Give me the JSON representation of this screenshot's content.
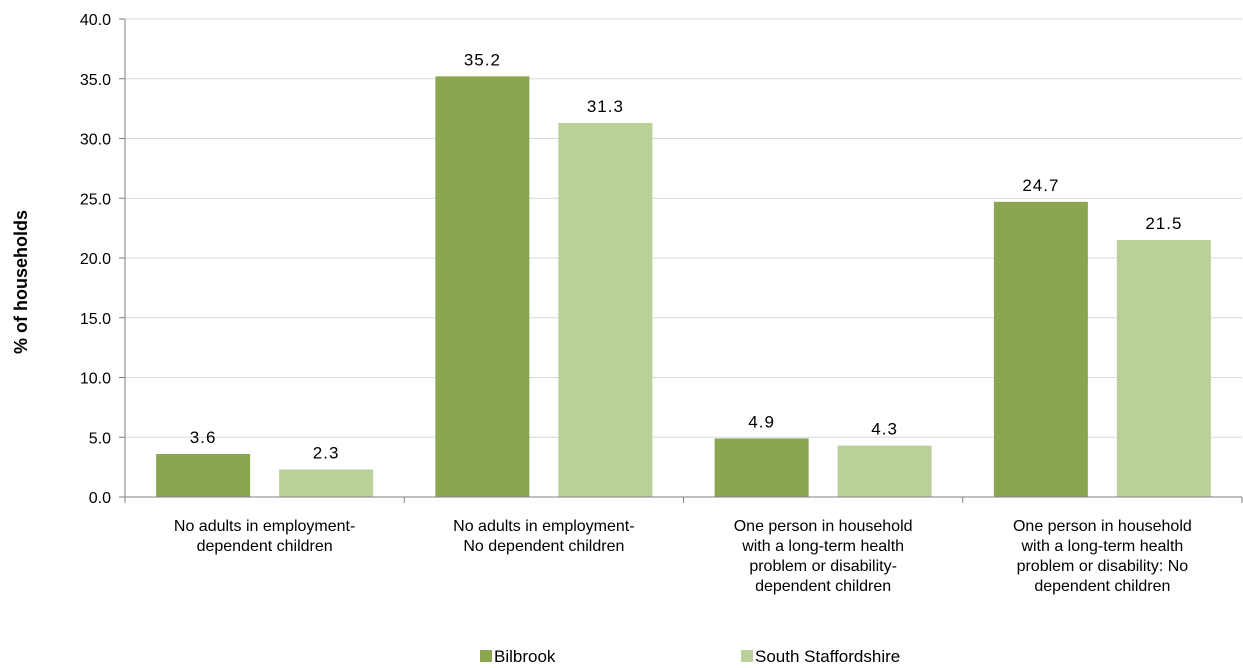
{
  "chart_data": {
    "type": "bar",
    "title": "",
    "xlabel": "",
    "ylabel": "% of households",
    "ylim": [
      0,
      40
    ],
    "y_ticks": [
      "0.0",
      "5.0",
      "10.0",
      "15.0",
      "20.0",
      "25.0",
      "30.0",
      "35.0",
      "40.0"
    ],
    "grid": true,
    "legend_position": "bottom",
    "categories": [
      [
        "No adults in employment-",
        "dependent children"
      ],
      [
        "No adults in employment-",
        "No dependent children"
      ],
      [
        "One person in household",
        "with a long-term health",
        "problem or disability-",
        "dependent children"
      ],
      [
        "One person in household",
        "with a long-term health",
        "problem or disability: No",
        "dependent children"
      ]
    ],
    "series": [
      {
        "name": "Bilbrook",
        "color": "#8aa74f",
        "values": [
          3.6,
          35.2,
          4.9,
          24.7
        ]
      },
      {
        "name": "South Staffordshire",
        "color": "#b9d198",
        "values": [
          2.3,
          31.3,
          4.3,
          21.5
        ]
      }
    ]
  }
}
